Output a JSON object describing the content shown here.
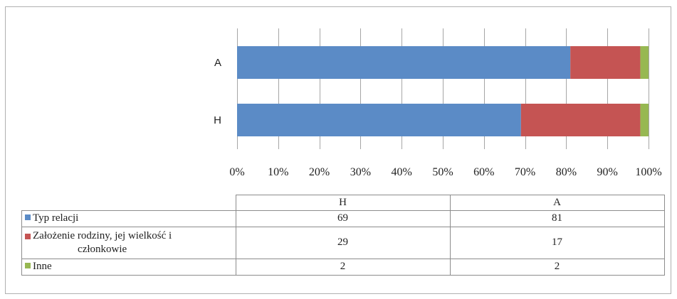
{
  "chart_data": {
    "type": "bar",
    "orientation": "horizontal",
    "stacked": "percent",
    "categories": [
      "H",
      "A"
    ],
    "series": [
      {
        "name": "Typ relacji",
        "values": [
          69,
          81
        ],
        "color": "#5b8bc6"
      },
      {
        "name": "Założenie rodziny, jej wielkość i członkowie",
        "values": [
          29,
          17
        ],
        "color": "#c55453"
      },
      {
        "name": "Inne",
        "values": [
          2,
          2
        ],
        "color": "#97b852"
      }
    ],
    "xlim": [
      0,
      100
    ],
    "x_ticks": [
      "0%",
      "10%",
      "20%",
      "30%",
      "40%",
      "50%",
      "60%",
      "70%",
      "80%",
      "90%",
      "100%"
    ],
    "grid": true,
    "legend": "data table below chart"
  },
  "table": {
    "columns": [
      "H",
      "A"
    ],
    "rows": [
      {
        "label": "Typ relacji",
        "values": [
          "69",
          "81"
        ],
        "color": "#5b8bc6"
      },
      {
        "label_lines": [
          "Założenie rodziny, jej wielkość i",
          "członkowie"
        ],
        "values": [
          "29",
          "17"
        ],
        "color": "#c55453"
      },
      {
        "label": "Inne",
        "values": [
          "2",
          "2"
        ],
        "color": "#97b852"
      }
    ]
  }
}
